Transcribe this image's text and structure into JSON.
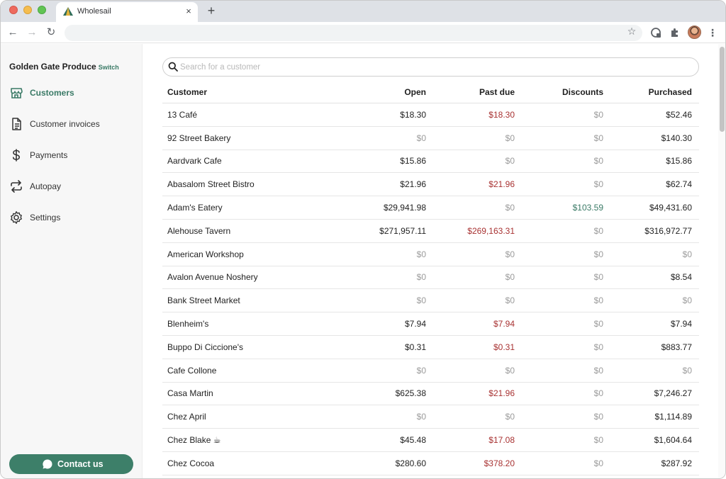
{
  "browser": {
    "tab_title": "Wholesail",
    "tab_close": "×",
    "new_tab": "+",
    "back": "←",
    "forward": "→",
    "reload": "↻",
    "star": "☆",
    "menu": "⋮",
    "address": ""
  },
  "sidebar": {
    "org_name": "Golden Gate Produce",
    "switch_label": "Switch",
    "items": [
      {
        "label": "Customers",
        "icon": "store-icon"
      },
      {
        "label": "Customer invoices",
        "icon": "document-icon"
      },
      {
        "label": "Payments",
        "icon": "dollar-icon"
      },
      {
        "label": "Autopay",
        "icon": "repeat-icon"
      },
      {
        "label": "Settings",
        "icon": "gear-icon"
      }
    ],
    "contact_label": "Contact us"
  },
  "search": {
    "placeholder": "Search for a customer"
  },
  "table": {
    "headers": [
      "Customer",
      "Open",
      "Past due",
      "Discounts",
      "Purchased"
    ],
    "rows": [
      [
        "13 Café",
        "$18.30",
        "$18.30",
        "$0",
        "$52.46"
      ],
      [
        "92 Street Bakery",
        "$0",
        "$0",
        "$0",
        "$140.30"
      ],
      [
        "Aardvark Cafe",
        "$15.86",
        "$0",
        "$0",
        "$15.86"
      ],
      [
        "Abasalom Street Bistro",
        "$21.96",
        "$21.96",
        "$0",
        "$62.74"
      ],
      [
        "Adam's Eatery",
        "$29,941.98",
        "$0",
        "$103.59",
        "$49,431.60"
      ],
      [
        "Alehouse Tavern",
        "$271,957.11",
        "$269,163.31",
        "$0",
        "$316,972.77"
      ],
      [
        "American Workshop",
        "$0",
        "$0",
        "$0",
        "$0"
      ],
      [
        "Avalon Avenue Noshery",
        "$0",
        "$0",
        "$0",
        "$8.54"
      ],
      [
        "Bank Street Market",
        "$0",
        "$0",
        "$0",
        "$0"
      ],
      [
        "Blenheim's",
        "$7.94",
        "$7.94",
        "$0",
        "$7.94"
      ],
      [
        "Buppo Di Ciccione's",
        "$0.31",
        "$0.31",
        "$0",
        "$883.77"
      ],
      [
        "Cafe Collone",
        "$0",
        "$0",
        "$0",
        "$0"
      ],
      [
        "Casa Martin",
        "$625.38",
        "$21.96",
        "$0",
        "$7,246.27"
      ],
      [
        "Chez April",
        "$0",
        "$0",
        "$0",
        "$1,114.89"
      ],
      [
        "Chez Blake ☕",
        "$45.48",
        "$17.08",
        "$0",
        "$1,604.64"
      ],
      [
        "Chez Cocoa",
        "$280.60",
        "$378.20",
        "$0",
        "$287.92"
      ]
    ]
  },
  "colors": {
    "accent": "#3d7f69",
    "past_due": "#a83232",
    "muted": "#9b9b9b"
  }
}
